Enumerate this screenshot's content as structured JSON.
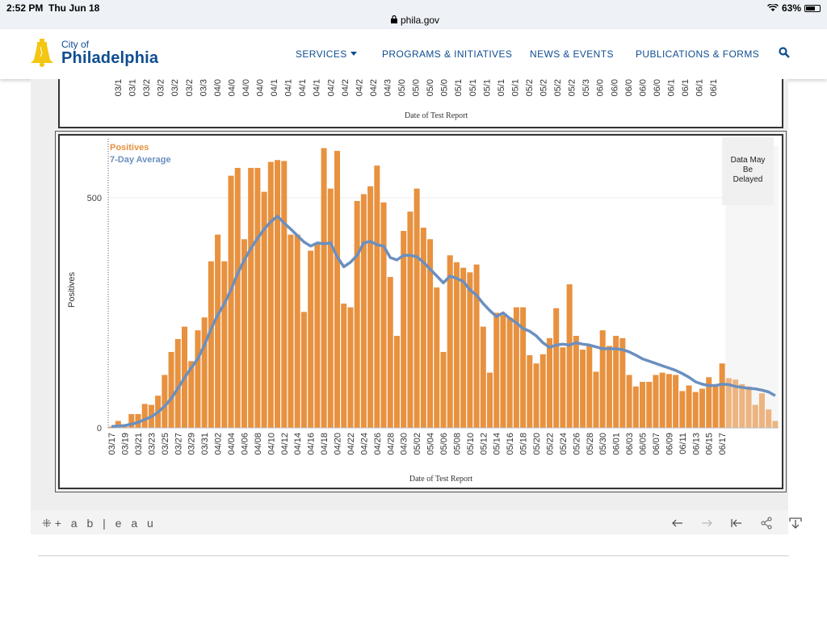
{
  "status_bar": {
    "time": "2:52 PM",
    "date": "Thu Jun 18",
    "url": "phila.gov",
    "battery": "63%"
  },
  "header": {
    "logo_small": "City of",
    "logo_big": "Philadelphia",
    "nav": [
      "SERVICES",
      "PROGRAMS & INITIATIVES",
      "NEWS & EVENTS",
      "PUBLICATIONS & FORMS"
    ]
  },
  "top_panel": {
    "xlabel": "Date of Test Report",
    "tick_labels": [
      "03/1",
      "03/1",
      "03/2",
      "03/2",
      "03/2",
      "03/2",
      "03/3",
      "04/0",
      "04/0",
      "04/0",
      "04/0",
      "04/1",
      "04/1",
      "04/1",
      "04/1",
      "04/2",
      "04/2",
      "04/2",
      "04/2",
      "04/3",
      "05/0",
      "05/0",
      "05/0",
      "05/0",
      "05/1",
      "05/1",
      "05/1",
      "05/1",
      "05/1",
      "05/2",
      "05/2",
      "05/2",
      "05/2",
      "05/3",
      "06/0",
      "06/0",
      "06/0",
      "06/0",
      "06/0",
      "06/1",
      "06/1",
      "06/1",
      "06/1"
    ]
  },
  "chart_data": {
    "type": "bar",
    "legend": [
      "Positives",
      "7-Day Average"
    ],
    "xlabel": "Date of Test Report",
    "ylabel": "Positives",
    "yticks": [
      0,
      500
    ],
    "ylim": [
      0,
      600
    ],
    "annotation": "Data May Be Delayed",
    "tick_labels": [
      "03/17",
      "03/19",
      "03/21",
      "03/23",
      "03/25",
      "03/27",
      "03/29",
      "03/31",
      "04/02",
      "04/04",
      "04/06",
      "04/08",
      "04/10",
      "04/12",
      "04/14",
      "04/16",
      "04/18",
      "04/20",
      "04/22",
      "04/24",
      "04/26",
      "04/28",
      "04/30",
      "05/02",
      "05/04",
      "05/06",
      "05/08",
      "05/10",
      "05/12",
      "05/14",
      "05/16",
      "05/18",
      "05/20",
      "05/22",
      "05/24",
      "05/26",
      "05/28",
      "05/30",
      "06/01",
      "06/03",
      "06/05",
      "06/07",
      "06/09",
      "06/11",
      "06/13",
      "06/15",
      "06/17"
    ],
    "series": [
      {
        "name": "Positives",
        "color": "#e8913f",
        "values": [
          3,
          15,
          3,
          30,
          30,
          52,
          50,
          70,
          115,
          165,
          193,
          220,
          145,
          212,
          240,
          362,
          420,
          362,
          548,
          565,
          410,
          565,
          565,
          513,
          578,
          582,
          580,
          420,
          420,
          252,
          385,
          400,
          608,
          520,
          602,
          270,
          262,
          493,
          508,
          525,
          570,
          490,
          328,
          200,
          428,
          470,
          520,
          435,
          410,
          305,
          165,
          375,
          360,
          348,
          338,
          355,
          220,
          120,
          250,
          245,
          240,
          262,
          262,
          158,
          140,
          160,
          195,
          260,
          175,
          312,
          200,
          170,
          180,
          122,
          212,
          178,
          200,
          195,
          115,
          90,
          100,
          100,
          115,
          120,
          117,
          115,
          80,
          92,
          78,
          85,
          110,
          95,
          140,
          108,
          105,
          95,
          90,
          50,
          75,
          40,
          15
        ],
        "delayed_from_index": 93
      },
      {
        "name": "7-Day Average",
        "color": "#6b8fbf",
        "values": [
          3,
          4,
          5,
          8,
          12,
          18,
          24,
          34,
          47,
          64,
          86,
          109,
          130,
          150,
          180,
          215,
          245,
          270,
          300,
          335,
          365,
          390,
          412,
          432,
          448,
          460,
          445,
          432,
          418,
          404,
          395,
          402,
          400,
          402,
          372,
          350,
          360,
          375,
          402,
          405,
          398,
          395,
          370,
          365,
          375,
          375,
          372,
          360,
          345,
          330,
          315,
          330,
          325,
          318,
          300,
          288,
          270,
          255,
          242,
          250,
          238,
          228,
          216,
          210,
          200,
          185,
          175,
          180,
          182,
          180,
          185,
          182,
          180,
          176,
          172,
          172,
          172,
          170,
          165,
          158,
          150,
          145,
          140,
          135,
          130,
          125,
          118,
          110,
          100,
          95,
          92,
          92,
          95,
          94,
          90,
          88,
          86,
          85,
          82,
          78,
          70
        ]
      }
    ]
  }
}
